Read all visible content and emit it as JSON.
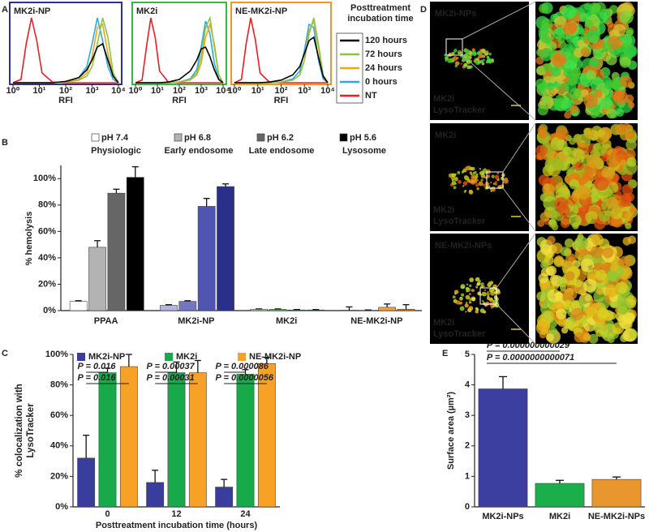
{
  "chart_data": [
    {
      "type": "line",
      "panel": "A",
      "xlabel": "RFI",
      "legend_title": "Posttreatment incubation time",
      "xlim": [
        0,
        4
      ],
      "ylim": [
        0,
        100
      ],
      "xticks": [
        {
          "value": 0,
          "label": "10⁰"
        },
        {
          "value": 1,
          "label": "10¹"
        },
        {
          "value": 2,
          "label": "10²"
        },
        {
          "value": 3,
          "label": "10³"
        },
        {
          "value": 4,
          "label": "10⁴"
        }
      ],
      "x": [
        0,
        0.3,
        0.5,
        0.7,
        0.9,
        1.1,
        1.5,
        2.0,
        2.5,
        2.8,
        3.0,
        3.2,
        3.4,
        3.6,
        3.8,
        4.0
      ],
      "series": [
        {
          "name": "120 hours",
          "color": "#000000"
        },
        {
          "name": "72 hours",
          "color": "#8cc63f"
        },
        {
          "name": "24 hours",
          "color": "#f7a21b"
        },
        {
          "name": "0 hours",
          "color": "#29abe2"
        },
        {
          "name": "NT",
          "color": "#ed1c24"
        }
      ],
      "panels": [
        {
          "title": "MK2i-NP",
          "color": "#2e3192",
          "values": [
            [
              0,
              0,
              0,
              0,
              0,
              0,
              0,
              2,
              8,
              20,
              35,
              55,
              60,
              35,
              10,
              0
            ],
            [
              0,
              0,
              0,
              0,
              0,
              0,
              0,
              1,
              4,
              10,
              25,
              60,
              100,
              70,
              15,
              0
            ],
            [
              0,
              0,
              0,
              0,
              0,
              0,
              0,
              1,
              5,
              15,
              40,
              85,
              90,
              45,
              10,
              0
            ],
            [
              0,
              0,
              0,
              0,
              0,
              0,
              0,
              1,
              8,
              25,
              60,
              100,
              65,
              25,
              5,
              0
            ],
            [
              0,
              5,
              60,
              100,
              65,
              15,
              1,
              0,
              0,
              0,
              0,
              0,
              0,
              0,
              0,
              0
            ]
          ]
        },
        {
          "title": "MK2i",
          "color": "#39b54a",
          "values": [
            [
              0,
              0,
              0,
              0,
              0,
              0,
              1,
              5,
              18,
              35,
              52,
              55,
              40,
              20,
              5,
              0
            ],
            [
              0,
              0,
              0,
              0,
              0,
              0,
              0,
              1,
              5,
              15,
              40,
              85,
              100,
              55,
              12,
              0
            ],
            [
              0,
              0,
              0,
              0,
              0,
              0,
              0,
              1,
              4,
              12,
              30,
              70,
              90,
              60,
              12,
              0
            ],
            [
              0,
              0,
              0,
              0,
              0,
              0,
              0,
              1,
              6,
              20,
              55,
              95,
              75,
              30,
              6,
              0
            ],
            [
              0,
              4,
              55,
              100,
              70,
              18,
              1,
              0,
              0,
              0,
              0,
              0,
              0,
              0,
              0,
              0
            ]
          ]
        },
        {
          "title": "NE-MK2i-NP",
          "color": "#f7941d",
          "values": [
            [
              0,
              0,
              0,
              0,
              0,
              0,
              1,
              4,
              12,
              25,
              45,
              65,
              70,
              40,
              10,
              0
            ],
            [
              0,
              0,
              0,
              0,
              0,
              0,
              0,
              1,
              4,
              12,
              35,
              75,
              100,
              60,
              12,
              0
            ],
            [
              0,
              0,
              0,
              0,
              0,
              0,
              0,
              1,
              4,
              12,
              35,
              80,
              95,
              55,
              10,
              0
            ],
            [
              0,
              0,
              0,
              0,
              0,
              0,
              0,
              1,
              6,
              18,
              50,
              90,
              85,
              35,
              6,
              0
            ],
            [
              0,
              5,
              60,
              100,
              65,
              15,
              1,
              0,
              0,
              0,
              0,
              0,
              0,
              0,
              0,
              0
            ]
          ]
        }
      ]
    },
    {
      "type": "bar",
      "panel": "B",
      "ylabel": "% hemolysis",
      "categories": [
        "PPAA",
        "MK2i-NP",
        "MK2i",
        "NE-MK2i-NP"
      ],
      "ylim": [
        0,
        110
      ],
      "yticks": [
        {
          "value": 0,
          "label": "0%"
        },
        {
          "value": 20,
          "label": "20%"
        },
        {
          "value": 40,
          "label": "40%"
        },
        {
          "value": 60,
          "label": "60%"
        },
        {
          "value": 80,
          "label": "80%"
        },
        {
          "value": 100,
          "label": "100%"
        }
      ],
      "series": [
        {
          "name": "pH 7.4",
          "description": "Physiologic",
          "color": "#ffffff",
          "colors": [
            "#ffffff",
            "#b4b6e0",
            "#b9e0b4",
            "#fbd9a8"
          ],
          "values": [
            7,
            4,
            1,
            0.3
          ],
          "errors": [
            0.5,
            0.5,
            0.3,
            2.5
          ]
        },
        {
          "name": "pH 6.8",
          "description": "Early endosome",
          "color": "#b3b3b3",
          "colors": [
            "#b3b3b3",
            "#7277c2",
            "#6cc070",
            "#f9b865"
          ],
          "values": [
            48,
            7,
            1,
            0.2
          ],
          "errors": [
            5,
            0.5,
            0.3,
            0.3
          ]
        },
        {
          "name": "pH 6.2",
          "description": "Late endosome",
          "color": "#666666",
          "colors": [
            "#666666",
            "#4f55b0",
            "#2fa84f",
            "#f5a030"
          ],
          "values": [
            89,
            79,
            0.5,
            2.5
          ],
          "errors": [
            3,
            6,
            0.3,
            2.5
          ]
        },
        {
          "name": "pH 5.6",
          "description": "Lysosome",
          "color": "#000000",
          "colors": [
            "#000000",
            "#2a2f8a",
            "#0a7a30",
            "#d67f10"
          ],
          "values": [
            101,
            94,
            0.5,
            1
          ],
          "errors": [
            8,
            2,
            0.3,
            3.5
          ]
        }
      ]
    },
    {
      "type": "bar",
      "panel": "C",
      "ylabel": "% colocalization with LysoTracker",
      "xlabel": "Posttreatment incubation time (hours)",
      "categories": [
        "0",
        "12",
        "24"
      ],
      "ylim": [
        0,
        100
      ],
      "yticks": [
        {
          "value": 0,
          "label": "0%"
        },
        {
          "value": 20,
          "label": "20%"
        },
        {
          "value": 40,
          "label": "40%"
        },
        {
          "value": 60,
          "label": "60%"
        },
        {
          "value": 80,
          "label": "80%"
        },
        {
          "value": 100,
          "label": "100%"
        }
      ],
      "series": [
        {
          "name": "MK2i-NP",
          "color": "#393d9b",
          "values": [
            32,
            16,
            13
          ],
          "errors": [
            15,
            8,
            5
          ]
        },
        {
          "name": "MK2i",
          "color": "#17a94a",
          "values": [
            88,
            88,
            87
          ],
          "errors": [
            3,
            7,
            3
          ]
        },
        {
          "name": "NE-MK2i-NP",
          "color": "#f7a226",
          "values": [
            92,
            88,
            94
          ],
          "errors": [
            8,
            8,
            4
          ]
        }
      ],
      "significance": [
        [
          "P = 0.016",
          "P = 0.016"
        ],
        [
          "P = 0.00037",
          "P = 0.00031"
        ],
        [
          "P = 0.000086",
          "P = 0.0000056"
        ]
      ]
    },
    {
      "type": "bar",
      "panel": "E",
      "ylabel": "Surface area (µm²)",
      "categories": [
        "MK2i-NPs",
        "MK2i",
        "NE-MK2i-NPs"
      ],
      "ylim": [
        0,
        5
      ],
      "yticks": [
        0,
        1,
        2,
        3,
        4,
        5
      ],
      "values": [
        3.87,
        0.77,
        0.9
      ],
      "errors": [
        0.4,
        0.1,
        0.08
      ],
      "colors": [
        "#3c3fa0",
        "#1aaf4b",
        "#e8962d"
      ],
      "significance": [
        "P = 0.000000000029",
        "P = 0.0000000000071"
      ]
    }
  ],
  "images": {
    "panel": "D",
    "rows": [
      {
        "title": "MK2i-NPs",
        "labels": [
          "MK2i",
          "LysoTracker"
        ]
      },
      {
        "title": "MK2i",
        "labels": [
          "MK2i",
          "LysoTracker"
        ]
      },
      {
        "title": "NE-MK2i-NPs",
        "labels": [
          "MK2i",
          "LysoTracker"
        ]
      }
    ]
  }
}
